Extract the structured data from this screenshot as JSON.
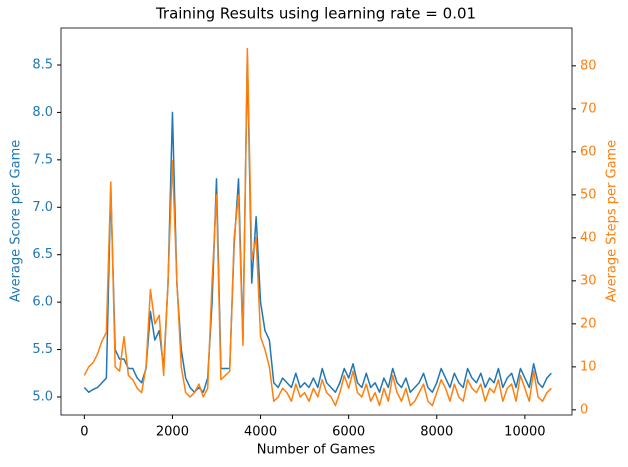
{
  "chart_data": {
    "type": "line",
    "title": "Training Results using learning rate = 0.01",
    "xlabel": "Number of Games",
    "ylabel": "Average Score per Game",
    "y2label": "Average Steps per Game",
    "x": [
      0,
      100,
      200,
      300,
      400,
      500,
      600,
      700,
      800,
      900,
      1000,
      1100,
      1200,
      1300,
      1400,
      1500,
      1600,
      1700,
      1800,
      1900,
      2000,
      2100,
      2200,
      2300,
      2400,
      2500,
      2600,
      2700,
      2800,
      2900,
      3000,
      3100,
      3200,
      3300,
      3400,
      3500,
      3600,
      3700,
      3800,
      3900,
      4000,
      4100,
      4200,
      4300,
      4400,
      4500,
      4600,
      4700,
      4800,
      4900,
      5000,
      5100,
      5200,
      5300,
      5400,
      5500,
      5600,
      5700,
      5800,
      5900,
      6000,
      6100,
      6200,
      6300,
      6400,
      6500,
      6600,
      6700,
      6800,
      6900,
      7000,
      7100,
      7200,
      7300,
      7400,
      7500,
      7600,
      7700,
      7800,
      7900,
      8000,
      8100,
      8200,
      8300,
      8400,
      8500,
      8600,
      8700,
      8800,
      8900,
      9000,
      9100,
      9200,
      9300,
      9400,
      9500,
      9600,
      9700,
      9800,
      9900,
      10000,
      10100,
      10200,
      10300,
      10400,
      10500,
      10600
    ],
    "series": [
      {
        "color": "#1f77b4",
        "axis": "y",
        "values": [
          5.1,
          5.05,
          5.08,
          5.1,
          5.15,
          5.2,
          7.2,
          5.5,
          5.4,
          5.4,
          5.3,
          5.3,
          5.2,
          5.15,
          5.3,
          5.9,
          5.6,
          5.7,
          5.3,
          6.2,
          8.0,
          6.2,
          5.5,
          5.2,
          5.1,
          5.05,
          5.1,
          5.05,
          5.2,
          6.0,
          7.3,
          5.3,
          5.3,
          5.3,
          6.6,
          7.3,
          5.6,
          8.6,
          6.2,
          6.9,
          6.0,
          5.7,
          5.6,
          5.15,
          5.1,
          5.2,
          5.15,
          5.1,
          5.25,
          5.1,
          5.15,
          5.1,
          5.2,
          5.1,
          5.3,
          5.15,
          5.1,
          5.05,
          5.15,
          5.3,
          5.2,
          5.35,
          5.15,
          5.1,
          5.25,
          5.1,
          5.15,
          5.05,
          5.2,
          5.1,
          5.3,
          5.15,
          5.1,
          5.2,
          5.05,
          5.1,
          5.15,
          5.25,
          5.1,
          5.05,
          5.15,
          5.3,
          5.2,
          5.1,
          5.25,
          5.15,
          5.1,
          5.3,
          5.2,
          5.15,
          5.25,
          5.1,
          5.2,
          5.15,
          5.3,
          5.1,
          5.2,
          5.25,
          5.1,
          5.3,
          5.2,
          5.1,
          5.35,
          5.15,
          5.1,
          5.2,
          5.25
        ]
      },
      {
        "color": "#ff7f0e",
        "axis": "y2",
        "values": [
          8,
          10,
          11,
          13,
          16,
          18,
          53,
          10,
          9,
          17,
          8,
          7,
          5,
          4,
          10,
          28,
          20,
          22,
          8,
          30,
          58,
          30,
          10,
          4,
          3,
          4,
          6,
          3,
          5,
          30,
          50,
          7,
          8,
          9,
          40,
          50,
          15,
          84,
          35,
          40,
          17,
          14,
          10,
          2,
          3,
          5,
          4,
          2,
          6,
          3,
          4,
          2,
          5,
          3,
          7,
          4,
          3,
          1,
          4,
          8,
          5,
          9,
          4,
          3,
          6,
          2,
          4,
          1,
          5,
          2,
          8,
          4,
          2,
          5,
          1,
          2,
          4,
          6,
          2,
          1,
          4,
          7,
          5,
          2,
          6,
          3,
          2,
          7,
          5,
          4,
          6,
          2,
          5,
          4,
          7,
          2,
          5,
          6,
          2,
          8,
          5,
          2,
          9,
          3,
          2,
          4,
          5
        ]
      }
    ],
    "xlim": [
      -530,
      11070
    ],
    "xticks": [
      0,
      2000,
      4000,
      6000,
      8000,
      10000
    ],
    "ylim": [
      4.81,
      8.89
    ],
    "yticks": [
      {
        "value": 5,
        "label": "5.0"
      },
      5.5,
      {
        "value": 6,
        "label": "6.0"
      },
      6.5,
      {
        "value": 7,
        "label": "7.0"
      },
      7.5,
      {
        "value": 8,
        "label": "8.0"
      },
      8.5
    ],
    "y2lim": [
      -1.2,
      88.8
    ],
    "y2ticks": [
      0,
      10,
      20,
      30,
      40,
      50,
      60,
      70,
      80
    ],
    "grid": false
  }
}
